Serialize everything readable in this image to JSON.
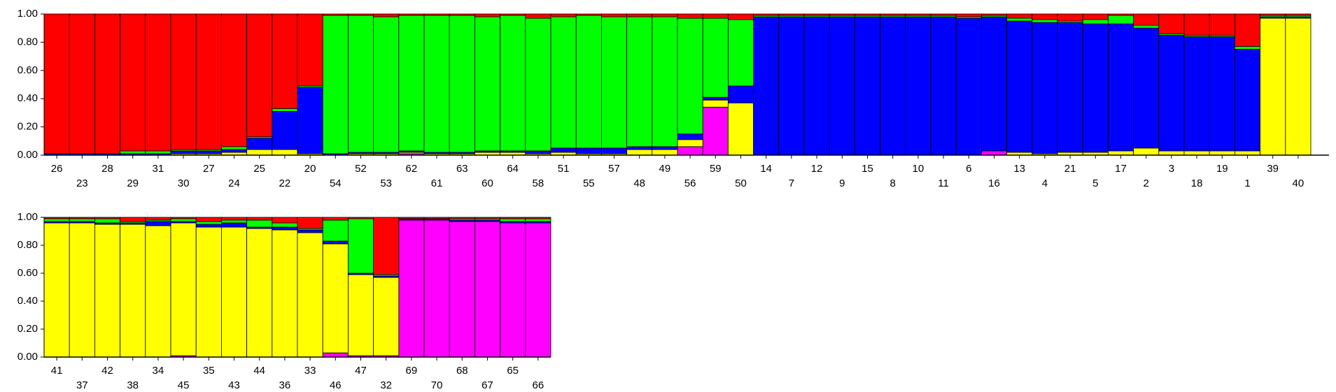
{
  "chart_data": [
    {
      "type": "bar",
      "stacked": true,
      "categories": [
        "26",
        "23",
        "28",
        "29",
        "31",
        "30",
        "27",
        "24",
        "25",
        "22",
        "20",
        "54",
        "52",
        "53",
        "62",
        "61",
        "63",
        "60",
        "64",
        "58",
        "51",
        "55",
        "57",
        "48",
        "49",
        "56",
        "59",
        "50",
        "14",
        "7",
        "12",
        "9",
        "15",
        "8",
        "10",
        "11",
        "6",
        "16",
        "13",
        "4",
        "21",
        "5",
        "17",
        "2",
        "3",
        "18",
        "19",
        "1",
        "39",
        "40"
      ],
      "series": [
        {
          "color": "#ff00ff",
          "values": [
            0,
            0,
            0,
            0,
            0,
            0,
            0,
            0,
            0,
            0,
            0,
            0,
            0,
            0,
            0.01,
            0,
            0,
            0,
            0,
            0,
            0,
            0,
            0,
            0,
            0,
            0.06,
            0.34,
            0,
            0,
            0,
            0,
            0,
            0,
            0,
            0,
            0,
            0,
            0.03,
            0,
            0,
            0,
            0,
            0,
            0,
            0,
            0,
            0,
            0,
            0,
            0
          ]
        },
        {
          "color": "#ffff00",
          "values": [
            0,
            0,
            0,
            0,
            0,
            0.01,
            0.01,
            0.02,
            0.04,
            0.04,
            0.01,
            0,
            0.01,
            0.01,
            0.01,
            0.01,
            0.01,
            0.02,
            0.02,
            0.01,
            0.02,
            0.01,
            0.01,
            0.04,
            0.04,
            0.05,
            0.05,
            0.37,
            0,
            0,
            0,
            0,
            0,
            0,
            0,
            0,
            0,
            0,
            0.02,
            0.01,
            0.02,
            0.02,
            0.03,
            0.05,
            0.03,
            0.03,
            0.03,
            0.03,
            0.97,
            0.97
          ]
        },
        {
          "color": "#0000ff",
          "values": [
            0.01,
            0.01,
            0.01,
            0.01,
            0.01,
            0.02,
            0.02,
            0.02,
            0.08,
            0.27,
            0.47,
            0.01,
            0.01,
            0.01,
            0.01,
            0.01,
            0.01,
            0.01,
            0.01,
            0.02,
            0.03,
            0.04,
            0.04,
            0.02,
            0.02,
            0.04,
            0.02,
            0.12,
            0.98,
            0.98,
            0.98,
            0.98,
            0.98,
            0.98,
            0.98,
            0.98,
            0.97,
            0.95,
            0.93,
            0.93,
            0.92,
            0.91,
            0.9,
            0.85,
            0.82,
            0.81,
            0.81,
            0.72,
            0.01,
            0.01
          ]
        },
        {
          "color": "#00ff00",
          "values": [
            0,
            0,
            0,
            0.02,
            0.02,
            0.01,
            0.01,
            0.02,
            0.01,
            0.02,
            0.01,
            0.98,
            0.97,
            0.96,
            0.96,
            0.97,
            0.97,
            0.95,
            0.96,
            0.94,
            0.93,
            0.94,
            0.93,
            0.92,
            0.92,
            0.82,
            0.56,
            0.47,
            0.01,
            0.01,
            0.01,
            0.01,
            0.01,
            0.01,
            0.01,
            0.01,
            0.01,
            0.01,
            0.02,
            0.02,
            0.01,
            0.03,
            0.06,
            0.02,
            0.01,
            0.01,
            0.01,
            0.02,
            0.01,
            0.01
          ]
        },
        {
          "color": "#ff0000",
          "values": [
            0.99,
            0.99,
            0.99,
            0.97,
            0.97,
            0.96,
            0.96,
            0.94,
            0.87,
            0.67,
            0.51,
            0.01,
            0.01,
            0.02,
            0.01,
            0.01,
            0.01,
            0.02,
            0.01,
            0.03,
            0.02,
            0.01,
            0.02,
            0.02,
            0.02,
            0.03,
            0.03,
            0.04,
            0.01,
            0.01,
            0.01,
            0.01,
            0.01,
            0.01,
            0.01,
            0.01,
            0.02,
            0.01,
            0.03,
            0.04,
            0.05,
            0.04,
            0.01,
            0.08,
            0.14,
            0.15,
            0.15,
            0.23,
            0.01,
            0.01
          ]
        }
      ],
      "ylim": [
        0,
        1
      ],
      "yticks": [
        {
          "value": 0,
          "label": "0.00"
        },
        {
          "value": 0.2,
          "label": "0.20"
        },
        {
          "value": 0.4,
          "label": "0.40"
        },
        {
          "value": 0.6,
          "label": "0.60"
        },
        {
          "value": 0.8,
          "label": "0.80"
        },
        {
          "value": 1,
          "label": "1.00"
        }
      ]
    },
    {
      "type": "bar",
      "stacked": true,
      "categories": [
        "41",
        "37",
        "42",
        "38",
        "34",
        "45",
        "35",
        "43",
        "44",
        "36",
        "33",
        "46",
        "47",
        "32",
        "69",
        "70",
        "68",
        "67",
        "65",
        "66"
      ],
      "series": [
        {
          "color": "#ff00ff",
          "values": [
            0,
            0,
            0,
            0,
            0,
            0.01,
            0,
            0,
            0,
            0,
            0,
            0.03,
            0.01,
            0.01,
            0.98,
            0.98,
            0.97,
            0.97,
            0.96,
            0.96
          ]
        },
        {
          "color": "#ffff00",
          "values": [
            0.96,
            0.96,
            0.95,
            0.95,
            0.94,
            0.95,
            0.93,
            0.93,
            0.92,
            0.91,
            0.89,
            0.78,
            0.58,
            0.56,
            0,
            0,
            0,
            0,
            0,
            0
          ]
        },
        {
          "color": "#0000ff",
          "values": [
            0.01,
            0.01,
            0.01,
            0.01,
            0.03,
            0.01,
            0.02,
            0.03,
            0.01,
            0.02,
            0.02,
            0.02,
            0.01,
            0.01,
            0.01,
            0.01,
            0.01,
            0.01,
            0.01,
            0.01
          ]
        },
        {
          "color": "#00ff00",
          "values": [
            0.02,
            0.02,
            0.03,
            0.01,
            0.01,
            0.02,
            0.02,
            0.02,
            0.05,
            0.03,
            0.01,
            0.15,
            0.39,
            0.01,
            0,
            0,
            0.01,
            0.01,
            0.02,
            0.02
          ]
        },
        {
          "color": "#ff0000",
          "values": [
            0.01,
            0.01,
            0.01,
            0.03,
            0.02,
            0.01,
            0.03,
            0.02,
            0.02,
            0.04,
            0.08,
            0.02,
            0.01,
            0.41,
            0.01,
            0.01,
            0.01,
            0.01,
            0.01,
            0.01
          ]
        }
      ],
      "ylim": [
        0,
        1
      ],
      "yticks": [
        {
          "value": 0,
          "label": "0.00"
        },
        {
          "value": 0.2,
          "label": "0.20"
        },
        {
          "value": 0.4,
          "label": "0.40"
        },
        {
          "value": 0.6,
          "label": "0.60"
        },
        {
          "value": 0.8,
          "label": "0.80"
        },
        {
          "value": 1,
          "label": "1.00"
        }
      ]
    }
  ]
}
